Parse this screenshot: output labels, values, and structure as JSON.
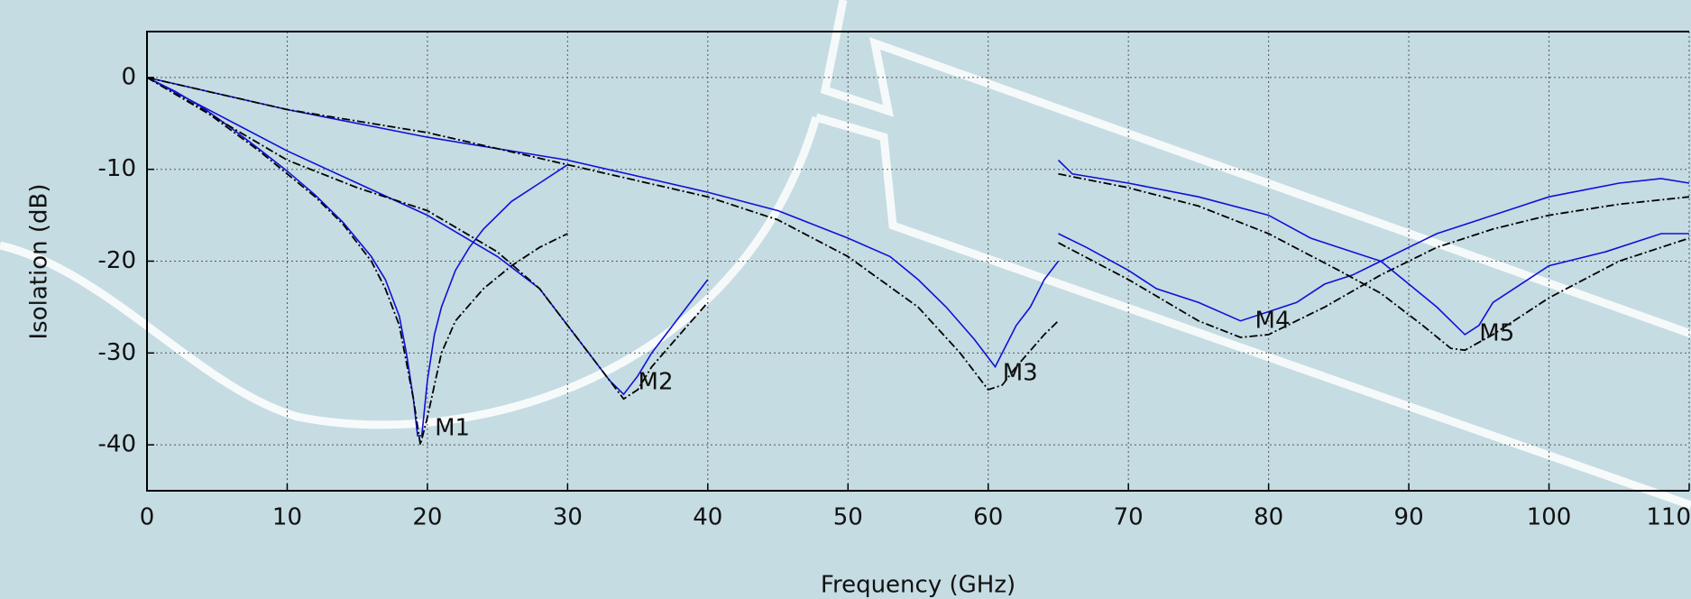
{
  "chart_data": {
    "type": "line",
    "xlabel": "Frequency (GHz)",
    "ylabel": "Isolation (dB)",
    "xlim": [
      0,
      110
    ],
    "ylim": [
      -45,
      5
    ],
    "xticks": [
      0,
      10,
      20,
      30,
      40,
      50,
      60,
      70,
      80,
      90,
      100,
      110
    ],
    "yticks": [
      0,
      -10,
      -20,
      -30,
      -40
    ],
    "grid": true,
    "annotations": [
      "M1",
      "M2",
      "M3",
      "M4",
      "M5"
    ],
    "series": [
      {
        "color": "#1010d8",
        "style": "solid",
        "x": [
          0,
          2,
          4,
          6,
          8,
          10,
          12,
          14,
          16,
          17,
          18,
          18.5,
          19,
          19.3,
          19.6,
          20,
          20.5,
          21,
          22,
          23,
          24,
          26,
          28,
          30
        ],
        "values": [
          0,
          -1.5,
          -3.3,
          -5.5,
          -7.8,
          -10.2,
          -12.8,
          -15.8,
          -19.5,
          -22,
          -26,
          -30,
          -35,
          -39,
          -39,
          -33,
          -28,
          -25,
          -21,
          -18.5,
          -16.5,
          -13.5,
          -11.5,
          -9.5
        ]
      },
      {
        "color": "#000000",
        "style": "dashdot",
        "x": [
          0,
          4,
          8,
          12,
          14,
          16,
          17,
          18,
          19,
          19.5,
          20,
          21,
          22,
          24,
          26,
          28,
          30
        ],
        "values": [
          0,
          -3.5,
          -8,
          -13,
          -16,
          -20,
          -23,
          -27,
          -35,
          -40,
          -37,
          -30,
          -26.5,
          -23,
          -20.5,
          -18.5,
          -17
        ]
      },
      {
        "color": "#1010d8",
        "style": "solid",
        "x": [
          0,
          5,
          10,
          15,
          20,
          25,
          28,
          30,
          32,
          33,
          34,
          35,
          36,
          38,
          40
        ],
        "values": [
          0,
          -4,
          -8,
          -11.5,
          -15,
          -19.5,
          -23,
          -27,
          -31,
          -33,
          -34.5,
          -32.5,
          -30,
          -26,
          -22
        ]
      },
      {
        "color": "#000000",
        "style": "dashdot",
        "x": [
          0,
          5,
          10,
          15,
          20,
          25,
          28,
          30,
          32,
          34,
          35,
          36,
          38,
          40
        ],
        "values": [
          0,
          -4.5,
          -9,
          -12,
          -14.5,
          -19,
          -23,
          -27,
          -31,
          -35,
          -34,
          -31.5,
          -28,
          -24.5
        ]
      },
      {
        "color": "#1010d8",
        "style": "solid",
        "x": [
          0,
          10,
          20,
          30,
          40,
          45,
          50,
          53,
          55,
          57,
          59,
          60,
          60.5,
          61,
          62,
          63,
          64,
          65
        ],
        "values": [
          0,
          -3.5,
          -6.5,
          -9,
          -12.5,
          -14.5,
          -17.5,
          -19.5,
          -22,
          -25,
          -28.5,
          -30.5,
          -31.5,
          -30,
          -27,
          -25,
          -22,
          -20
        ]
      },
      {
        "color": "#000000",
        "style": "dashdot",
        "x": [
          0,
          10,
          20,
          30,
          40,
          45,
          50,
          55,
          58,
          60,
          61,
          62,
          64,
          65
        ],
        "values": [
          0,
          -3.5,
          -6,
          -9.5,
          -13,
          -15.5,
          -19.5,
          -25,
          -30,
          -34,
          -33.5,
          -31.5,
          -28,
          -26.5
        ]
      },
      {
        "color": "#1010d8",
        "style": "solid",
        "x": [
          65,
          67,
          70,
          72,
          75,
          78,
          80,
          82,
          84,
          86,
          88,
          90,
          92,
          95,
          98,
          100,
          105,
          108,
          110
        ],
        "values": [
          -17,
          -18.5,
          -21,
          -23,
          -24.5,
          -26.5,
          -25.5,
          -24.5,
          -22.5,
          -21.5,
          -20,
          -18.5,
          -17,
          -15.5,
          -14,
          -13,
          -11.5,
          -11,
          -11.5
        ]
      },
      {
        "color": "#000000",
        "style": "dashdot",
        "x": [
          65,
          70,
          75,
          78,
          80,
          84,
          88,
          92,
          96,
          100,
          105,
          110
        ],
        "values": [
          -18,
          -22,
          -26.5,
          -28.3,
          -28,
          -25,
          -21.5,
          -18.5,
          -16.5,
          -15,
          -13.8,
          -13
        ]
      },
      {
        "color": "#1010d8",
        "style": "solid",
        "x": [
          65,
          66,
          70,
          75,
          80,
          83,
          85,
          88,
          90,
          92,
          94,
          95,
          96,
          98,
          100,
          104,
          108,
          110
        ],
        "values": [
          -9,
          -10.5,
          -11.5,
          -13,
          -15,
          -17.5,
          -18.5,
          -20,
          -22.5,
          -25,
          -28,
          -27,
          -24.5,
          -22.5,
          -20.5,
          -19,
          -17,
          -17
        ]
      },
      {
        "color": "#000000",
        "style": "dashdot",
        "x": [
          65,
          70,
          75,
          80,
          85,
          88,
          91,
          93,
          94,
          96,
          100,
          105,
          110
        ],
        "values": [
          -10.5,
          -12,
          -14,
          -17,
          -21,
          -23.5,
          -27,
          -29.5,
          -29.7,
          -28,
          -24,
          -20,
          -17.5
        ]
      }
    ]
  }
}
